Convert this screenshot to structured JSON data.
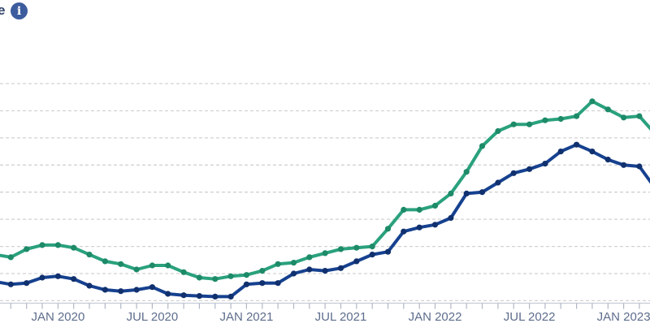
{
  "header": {
    "partial_title_text": "e",
    "info_icon": {
      "glyph": "i",
      "background_color": "#3c5c9d",
      "glyph_color": "#ffffff"
    }
  },
  "chart_data": {
    "type": "line",
    "title": "",
    "xlabel": "",
    "ylabel": "",
    "note": "y-axis labels cropped out of frame; values estimated from gridlines (baseline 0, step 2)",
    "ylim": [
      0,
      16
    ],
    "gridline_values": [
      0,
      2,
      4,
      6,
      8,
      10,
      12,
      14,
      16
    ],
    "grid_style": "dashed horizontal",
    "legend_position": "none visible",
    "x_tick_labels": [
      "JAN 2020",
      "JUL 2020",
      "JAN 2021",
      "JUL 2021",
      "JAN 2022",
      "JUL 2022",
      "JAN 2023"
    ],
    "months": [
      "SEP 2019",
      "OCT 2019",
      "NOV 2019",
      "DEC 2019",
      "JAN 2020",
      "FEB 2020",
      "MAR 2020",
      "APR 2020",
      "MAY 2020",
      "JUN 2020",
      "JUL 2020",
      "AUG 2020",
      "SEP 2020",
      "OCT 2020",
      "NOV 2020",
      "DEC 2020",
      "JAN 2021",
      "FEB 2021",
      "MAR 2021",
      "APR 2021",
      "MAY 2021",
      "JUN 2021",
      "JUL 2021",
      "AUG 2021",
      "SEP 2021",
      "OCT 2021",
      "NOV 2021",
      "DEC 2021",
      "JAN 2022",
      "FEB 2022",
      "MAR 2022",
      "APR 2022",
      "MAY 2022",
      "JUN 2022",
      "JUL 2022",
      "AUG 2022",
      "SEP 2022",
      "OCT 2022",
      "NOV 2022",
      "DEC 2022",
      "JAN 2023",
      "FEB 2023",
      "MAR 2023"
    ],
    "series": [
      {
        "name": "green series",
        "color": "#2aa17d",
        "marker_color": "#1d8a68",
        "values": [
          3.4,
          3.2,
          3.8,
          4.1,
          4.1,
          3.9,
          3.4,
          2.9,
          2.7,
          2.3,
          2.6,
          2.6,
          2.1,
          1.7,
          1.6,
          1.8,
          1.9,
          2.2,
          2.7,
          2.8,
          3.2,
          3.5,
          3.8,
          3.9,
          4.0,
          5.3,
          6.7,
          6.7,
          7.0,
          7.9,
          9.5,
          11.4,
          12.5,
          13.0,
          13.0,
          13.3,
          13.4,
          13.6,
          14.7,
          14.1,
          13.5,
          13.6,
          12.3
        ]
      },
      {
        "name": "navy series",
        "color": "#16418f",
        "marker_color": "#10306e",
        "values": [
          1.4,
          1.2,
          1.3,
          1.7,
          1.8,
          1.6,
          1.1,
          0.8,
          0.7,
          0.8,
          1.0,
          0.5,
          0.4,
          0.35,
          0.3,
          0.3,
          1.2,
          1.3,
          1.3,
          2.0,
          2.3,
          2.2,
          2.4,
          2.9,
          3.4,
          3.6,
          5.1,
          5.4,
          5.6,
          6.1,
          7.9,
          8.0,
          8.7,
          9.4,
          9.7,
          10.1,
          11.0,
          11.5,
          11.0,
          10.4,
          10.0,
          9.9,
          8.3
        ]
      }
    ],
    "colors": {
      "gridline": "#d2d2d2",
      "axis_line": "#c6ccd6",
      "tick": "#b0b7c4",
      "tick_label": "#5e6d8d"
    }
  }
}
